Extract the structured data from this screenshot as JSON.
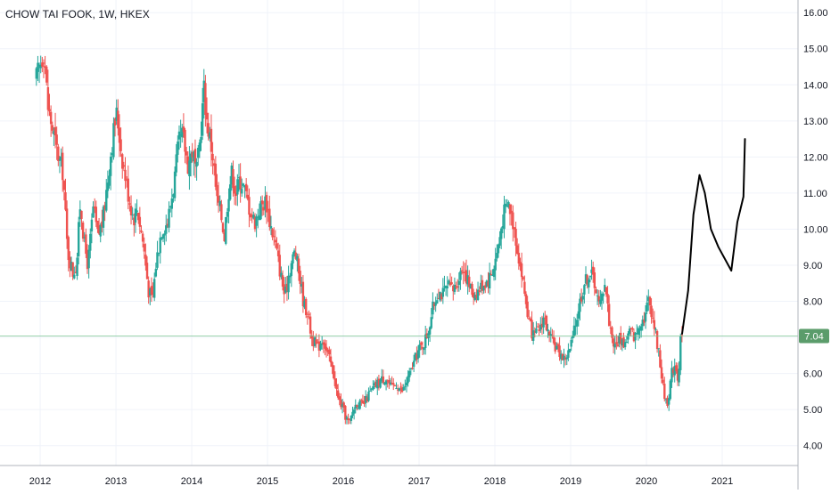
{
  "chart_title": "CHOW TAI FOOK, 1W, HKEX",
  "last_price_label": "7.04",
  "colors": {
    "up": "#26a69a",
    "down": "#ef5350",
    "grid": "#f0f3fa",
    "axis_line": "#b2b5be",
    "axis_text": "#131722",
    "price_line": "#6fbf8a",
    "price_badge": "#5b9c6b",
    "drawing": "#000000"
  },
  "chart_data": {
    "type": "candlestick",
    "title": "CHOW TAI FOOK, 1W, HKEX",
    "xlabel": "",
    "ylabel": "",
    "x_ticks": [
      "2012",
      "2013",
      "2014",
      "2015",
      "2016",
      "2017",
      "2018",
      "2019",
      "2020",
      "2021"
    ],
    "y_ticks": [
      "4.00",
      "5.00",
      "6.00",
      "7.00",
      "8.00",
      "9.00",
      "10.00",
      "11.00",
      "12.00",
      "13.00",
      "14.00",
      "15.00",
      "16.00"
    ],
    "xlim": [
      2011.47,
      2022.0
    ],
    "ylim": [
      3.45,
      16.35
    ],
    "grid": true,
    "last_price": 7.04,
    "price_path": [
      [
        2011.95,
        14.05
      ],
      [
        2012.0,
        14.4
      ],
      [
        2012.07,
        15.0
      ],
      [
        2012.12,
        13.4
      ],
      [
        2012.18,
        12.8
      ],
      [
        2012.27,
        11.9
      ],
      [
        2012.32,
        11.6
      ],
      [
        2012.38,
        9.4
      ],
      [
        2012.45,
        8.8
      ],
      [
        2012.5,
        9.0
      ],
      [
        2012.55,
        10.8
      ],
      [
        2012.6,
        9.6
      ],
      [
        2012.65,
        9.0
      ],
      [
        2012.72,
        10.6
      ],
      [
        2012.78,
        9.8
      ],
      [
        2012.85,
        10.3
      ],
      [
        2012.9,
        11.2
      ],
      [
        2012.95,
        12.1
      ],
      [
        2013.0,
        12.9
      ],
      [
        2013.03,
        13.2
      ],
      [
        2013.1,
        12.0
      ],
      [
        2013.18,
        11.0
      ],
      [
        2013.25,
        10.3
      ],
      [
        2013.3,
        10.6
      ],
      [
        2013.38,
        9.6
      ],
      [
        2013.45,
        8.3
      ],
      [
        2013.5,
        8.0
      ],
      [
        2013.55,
        9.1
      ],
      [
        2013.62,
        10.0
      ],
      [
        2013.7,
        10.2
      ],
      [
        2013.78,
        11.2
      ],
      [
        2013.85,
        12.4
      ],
      [
        2013.9,
        12.6
      ],
      [
        2013.97,
        11.8
      ],
      [
        2014.03,
        12.2
      ],
      [
        2014.08,
        11.5
      ],
      [
        2014.13,
        12.5
      ],
      [
        2014.18,
        13.9
      ],
      [
        2014.22,
        13.0
      ],
      [
        2014.3,
        12.0
      ],
      [
        2014.35,
        10.8
      ],
      [
        2014.4,
        10.5
      ],
      [
        2014.45,
        9.8
      ],
      [
        2014.5,
        11.0
      ],
      [
        2014.55,
        11.6
      ],
      [
        2014.6,
        11.0
      ],
      [
        2014.65,
        11.4
      ],
      [
        2014.7,
        11.2
      ],
      [
        2014.78,
        10.6
      ],
      [
        2014.85,
        10.2
      ],
      [
        2014.92,
        10.6
      ],
      [
        2015.0,
        10.8
      ],
      [
        2015.05,
        10.2
      ],
      [
        2015.12,
        9.6
      ],
      [
        2015.18,
        8.9
      ],
      [
        2015.25,
        8.1
      ],
      [
        2015.3,
        8.8
      ],
      [
        2015.38,
        9.4
      ],
      [
        2015.45,
        8.6
      ],
      [
        2015.5,
        7.9
      ],
      [
        2015.55,
        7.7
      ],
      [
        2015.6,
        7.0
      ],
      [
        2015.68,
        6.7
      ],
      [
        2015.75,
        7.0
      ],
      [
        2015.8,
        6.6
      ],
      [
        2015.85,
        6.3
      ],
      [
        2015.9,
        5.9
      ],
      [
        2015.95,
        5.3
      ],
      [
        2016.0,
        5.1
      ],
      [
        2016.05,
        4.8
      ],
      [
        2016.1,
        4.6
      ],
      [
        2016.15,
        5.0
      ],
      [
        2016.2,
        5.2
      ],
      [
        2016.28,
        5.1
      ],
      [
        2016.35,
        5.4
      ],
      [
        2016.42,
        5.6
      ],
      [
        2016.5,
        5.8
      ],
      [
        2016.58,
        5.9
      ],
      [
        2016.65,
        5.6
      ],
      [
        2016.72,
        5.7
      ],
      [
        2016.8,
        5.5
      ],
      [
        2016.88,
        5.9
      ],
      [
        2016.95,
        6.3
      ],
      [
        2017.0,
        6.6
      ],
      [
        2017.07,
        6.8
      ],
      [
        2017.13,
        7.1
      ],
      [
        2017.2,
        7.8
      ],
      [
        2017.27,
        8.3
      ],
      [
        2017.33,
        8.2
      ],
      [
        2017.4,
        8.4
      ],
      [
        2017.47,
        8.3
      ],
      [
        2017.53,
        8.6
      ],
      [
        2017.6,
        9.0
      ],
      [
        2017.67,
        8.5
      ],
      [
        2017.73,
        8.2
      ],
      [
        2017.8,
        8.3
      ],
      [
        2017.87,
        8.5
      ],
      [
        2017.93,
        8.6
      ],
      [
        2018.0,
        8.9
      ],
      [
        2018.07,
        9.6
      ],
      [
        2018.13,
        10.4
      ],
      [
        2018.2,
        10.7
      ],
      [
        2018.27,
        10.1
      ],
      [
        2018.33,
        9.3
      ],
      [
        2018.4,
        8.4
      ],
      [
        2018.47,
        7.4
      ],
      [
        2018.53,
        7.0
      ],
      [
        2018.6,
        7.2
      ],
      [
        2018.67,
        7.6
      ],
      [
        2018.73,
        7.0
      ],
      [
        2018.8,
        6.8
      ],
      [
        2018.87,
        6.6
      ],
      [
        2018.93,
        6.4
      ],
      [
        2019.0,
        6.6
      ],
      [
        2019.07,
        7.2
      ],
      [
        2019.13,
        7.9
      ],
      [
        2019.2,
        8.5
      ],
      [
        2019.27,
        8.8
      ],
      [
        2019.33,
        8.6
      ],
      [
        2019.4,
        7.8
      ],
      [
        2019.47,
        8.6
      ],
      [
        2019.53,
        7.4
      ],
      [
        2019.6,
        6.7
      ],
      [
        2019.67,
        7.0
      ],
      [
        2019.73,
        6.8
      ],
      [
        2019.8,
        7.2
      ],
      [
        2019.87,
        7.0
      ],
      [
        2019.93,
        7.4
      ],
      [
        2020.0,
        7.6
      ],
      [
        2020.05,
        8.1
      ],
      [
        2020.1,
        7.6
      ],
      [
        2020.15,
        7.0
      ],
      [
        2020.2,
        6.3
      ],
      [
        2020.25,
        5.4
      ],
      [
        2020.3,
        5.2
      ],
      [
        2020.35,
        6.0
      ],
      [
        2020.4,
        6.3
      ],
      [
        2020.44,
        5.8
      ],
      [
        2020.47,
        7.04
      ]
    ],
    "drawing_path": [
      [
        2020.47,
        7.1
      ],
      [
        2020.55,
        8.3
      ],
      [
        2020.62,
        10.4
      ],
      [
        2020.7,
        11.5
      ],
      [
        2020.77,
        11.0
      ],
      [
        2020.85,
        10.0
      ],
      [
        2020.95,
        9.5
      ],
      [
        2021.12,
        8.85
      ],
      [
        2021.2,
        10.2
      ],
      [
        2021.28,
        10.9
      ],
      [
        2021.3,
        12.5
      ]
    ]
  }
}
